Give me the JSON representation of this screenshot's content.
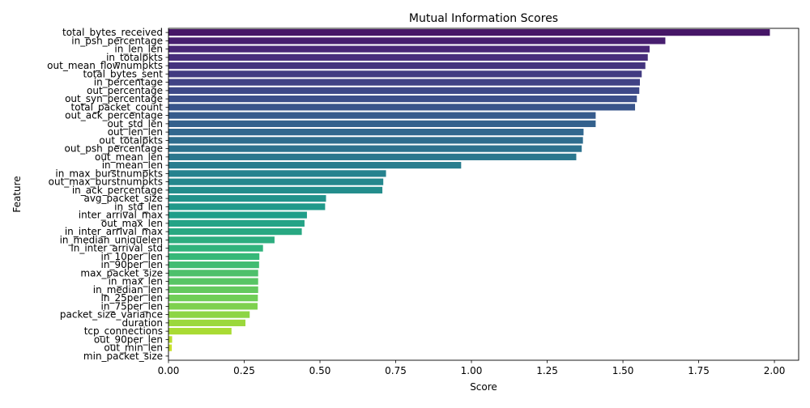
{
  "chart_data": {
    "type": "bar",
    "orientation": "horizontal",
    "title": "Mutual Information Scores",
    "xlabel": "Score",
    "ylabel": "Feature",
    "xlim": [
      0,
      2.08
    ],
    "xticks": [
      0.0,
      0.25,
      0.5,
      0.75,
      1.0,
      1.25,
      1.5,
      1.75,
      2.0
    ],
    "xtick_labels": [
      "0.00",
      "0.25",
      "0.50",
      "0.75",
      "1.00",
      "1.25",
      "1.50",
      "1.75",
      "2.00"
    ],
    "grid": false,
    "legend": "none",
    "colormap": "viridis",
    "categories": [
      "total_bytes_received",
      "in_psh_percentage",
      "in_len_len",
      "in_totalpkts",
      "out_mean_flownumpkts",
      "total_bytes_sent",
      "in_percentage",
      "out_percentage",
      "out_syn_percentage",
      "total_packet_count",
      "out_ack_percentage",
      "out_std_len",
      "out_len_len",
      "out_totalpkts",
      "out_psh_percentage",
      "out_mean_len",
      "in_mean_len",
      "in_max_burstnumpkts",
      "out_max_burstnumpkts",
      "in_ack_percentage",
      "avg_packet_size",
      "in_std_len",
      "inter_arrival_max",
      "out_max_len",
      "in_inter_arrival_max",
      "in_median_uniquelen",
      "in_inter_arrival_std",
      "in_10per_len",
      "in_90per_len",
      "max_packet_size",
      "in_max_len",
      "in_median_len",
      "in_25per_len",
      "in_75per_len",
      "packet_size_variance",
      "duration",
      "tcp_connections",
      "out_90per_len",
      "out_min_len",
      "min_packet_size"
    ],
    "values": [
      1.985,
      1.64,
      1.588,
      1.582,
      1.574,
      1.562,
      1.556,
      1.554,
      1.546,
      1.54,
      1.41,
      1.41,
      1.37,
      1.368,
      1.364,
      1.346,
      0.966,
      0.718,
      0.709,
      0.706,
      0.52,
      0.517,
      0.457,
      0.449,
      0.44,
      0.35,
      0.312,
      0.3,
      0.299,
      0.296,
      0.296,
      0.296,
      0.295,
      0.294,
      0.268,
      0.254,
      0.208,
      0.012,
      0.011,
      0.0
    ]
  }
}
